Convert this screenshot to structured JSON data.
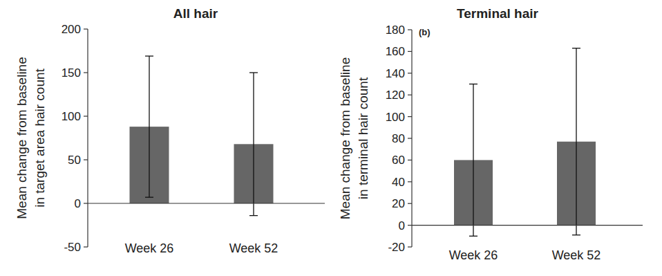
{
  "chart_data": [
    {
      "type": "bar",
      "title": "All hair",
      "y_label": "Mean change from baseline in target area hair count",
      "categories": [
        "Week 26",
        "Week 52"
      ],
      "values": [
        88,
        68
      ],
      "errors": [
        81,
        82
      ],
      "color": "#666666",
      "ylim": [
        -50,
        200
      ],
      "yticks": [
        -50,
        0,
        50,
        100,
        150,
        200
      ],
      "grid": false
    },
    {
      "type": "bar",
      "title": "Terminal hair",
      "annotations": [
        "(b)"
      ],
      "y_label": "Mean change from baseline in terminal hair count",
      "categories": [
        "Week 26",
        "Week 52"
      ],
      "values": [
        60,
        77
      ],
      "errors": [
        70,
        86
      ],
      "color": "#666666",
      "ylim": [
        -20,
        180
      ],
      "yticks": [
        -20,
        0,
        20,
        40,
        60,
        80,
        100,
        120,
        140,
        160,
        180
      ],
      "grid": false
    }
  ]
}
